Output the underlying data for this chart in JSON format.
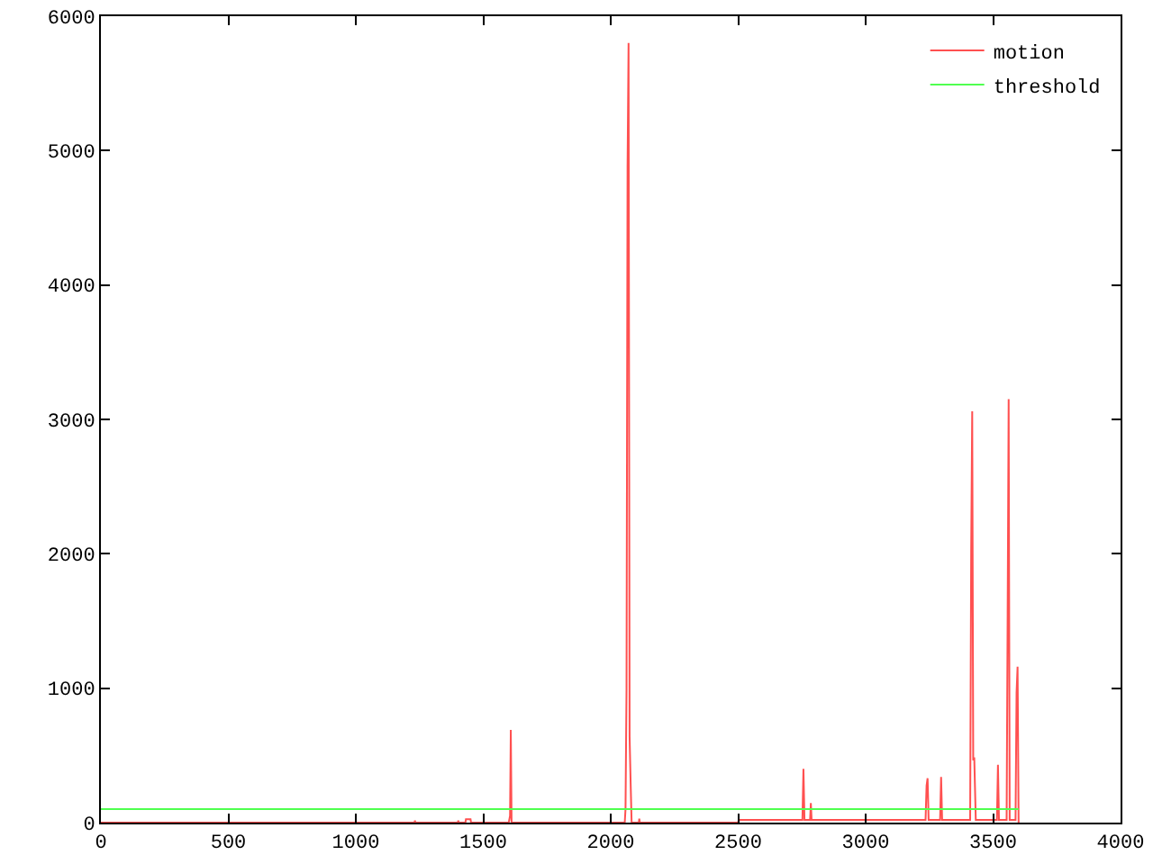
{
  "chart_data": {
    "type": "line",
    "xlim": [
      0,
      4000
    ],
    "ylim": [
      0,
      6000
    ],
    "xticks": [
      0,
      500,
      1000,
      1500,
      2000,
      2500,
      3000,
      3500,
      4000
    ],
    "yticks": [
      0,
      1000,
      2000,
      3000,
      4000,
      5000,
      6000
    ],
    "grid": false,
    "legend": "top right",
    "marker": "none",
    "line_style": "solid",
    "series": [
      {
        "name": "motion",
        "color": "#ff5050",
        "x": [
          0,
          1230,
          1232,
          1234,
          1400,
          1402,
          1404,
          1430,
          1432,
          1450,
          1452,
          1600,
          1605,
          1608,
          1611,
          2055,
          2058,
          2062,
          2066,
          2070,
          2074,
          2078,
          2082,
          2110,
          2112,
          2114,
          2500,
          2502,
          2520,
          2540,
          2650,
          2752,
          2756,
          2760,
          2782,
          2785,
          2788,
          3000,
          3235,
          3239,
          3243,
          3247,
          3292,
          3296,
          3300,
          3410,
          3414,
          3418,
          3422,
          3426,
          3432,
          3515,
          3519,
          3523,
          3553,
          3557,
          3561,
          3565,
          3588,
          3592,
          3596,
          3600
        ],
        "values": [
          0,
          0,
          15,
          0,
          0,
          15,
          0,
          0,
          25,
          25,
          0,
          0,
          50,
          690,
          0,
          0,
          100,
          1000,
          4880,
          5800,
          640,
          300,
          0,
          0,
          30,
          0,
          0,
          20,
          20,
          20,
          20,
          20,
          400,
          20,
          20,
          145,
          20,
          20,
          20,
          275,
          330,
          20,
          20,
          340,
          20,
          20,
          2025,
          3060,
          463,
          485,
          20,
          20,
          430,
          20,
          20,
          1550,
          3150,
          20,
          20,
          967,
          1160,
          0
        ]
      },
      {
        "name": "threshold",
        "color": "#50ff50",
        "x": [
          0,
          3600
        ],
        "values": [
          100,
          100
        ]
      }
    ]
  }
}
